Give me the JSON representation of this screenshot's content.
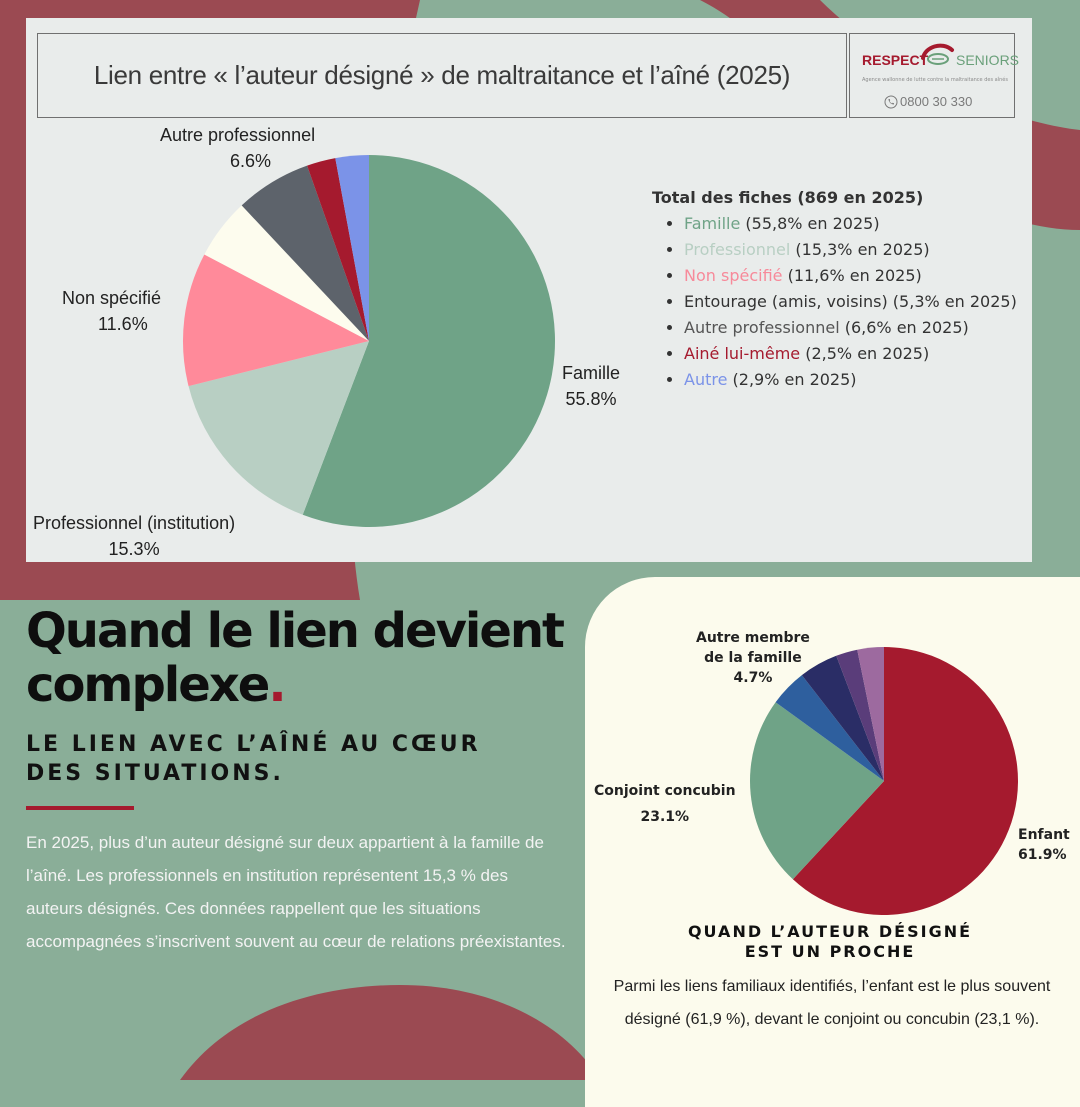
{
  "header": {
    "title": "Lien entre « l’auteur désigné » de maltraitance et l’aîné (2025)"
  },
  "logo": {
    "brand_left": "RESPECT",
    "brand_right": "SENIORS",
    "tagline": "Agence wallonne de lutte contre la maltraitance des aînés",
    "phone": "0800 30 330"
  },
  "legend": {
    "title": "Total des fiches (869 en 2025)",
    "items": [
      {
        "name": "Famille",
        "rest": " (55,8% en 2025)",
        "color": "#6fa387"
      },
      {
        "name": "Professionnel",
        "rest": " (15,3% en 2025)",
        "color": "#b8cfc3"
      },
      {
        "name": "Non spécifié",
        "rest": " (11,6% en 2025)",
        "color": "#f78a9a"
      },
      {
        "name": "Entourage (amis, voisins)",
        "rest": " (5,3% en 2025)",
        "color": "#333333"
      },
      {
        "name": "Autre professionnel",
        "rest": " (6,6% en 2025)",
        "color": "#555555"
      },
      {
        "name": "Ainé lui-même",
        "rest": " (2,5% en 2025)",
        "color": "#a51a2e"
      },
      {
        "name": "Autre",
        "rest": " (2,9% en 2025)",
        "color": "#7b93e8"
      }
    ]
  },
  "chart_data": [
    {
      "type": "pie",
      "title": "Lien entre « l’auteur désigné » de maltraitance et l’aîné (2025)",
      "categories": [
        "Famille",
        "Professionnel (institution)",
        "Non spécifié",
        "Entourage (amis, voisins)",
        "Autre professionnel",
        "Ainé lui-même",
        "Autre"
      ],
      "values": [
        55.8,
        15.3,
        11.6,
        5.3,
        6.6,
        2.5,
        2.9
      ],
      "colors": [
        "#6fa387",
        "#b8cfc3",
        "#ff8a9a",
        "#fdfcee",
        "#5d636b",
        "#a51a2e",
        "#7b93e8"
      ],
      "labels": [
        {
          "index": 0,
          "name": "Famille",
          "value": "55.8%"
        },
        {
          "index": 1,
          "name": "Professionnel (institution)",
          "value": "15.3%"
        },
        {
          "index": 2,
          "name": "Non spécifié",
          "value": "11.6%"
        },
        {
          "index": 4,
          "name": "Autre professionnel",
          "value": "6.6%"
        }
      ]
    },
    {
      "type": "pie",
      "title": "QUAND L’AUTEUR DÉSIGNÉ EST UN PROCHE",
      "categories": [
        "Enfant",
        "Conjoint concubin",
        "",
        "Autre membre de la famille",
        "",
        ""
      ],
      "values": [
        61.9,
        23.1,
        4.5,
        4.7,
        2.6,
        3.2
      ],
      "colors": [
        "#a51a2e",
        "#6fa387",
        "#2e5f9e",
        "#2a2d66",
        "#5a3d7a",
        "#9d6a9f"
      ],
      "labels": [
        {
          "index": 0,
          "name": "Enfant",
          "value": "61.9%"
        },
        {
          "index": 1,
          "name": "Conjoint concubin",
          "value": "23.1%"
        },
        {
          "index": 3,
          "name": "Autre membre de la famille",
          "value": "4.7%"
        }
      ]
    }
  ],
  "section": {
    "headline_line1": "Quand le lien devient",
    "headline_line2": "complexe",
    "headline_dot": ".",
    "subhead_line1": "LE LIEN AVEC L’AÎNÉ AU CŒUR",
    "subhead_line2": "DES SITUATIONS.",
    "paragraph": "En 2025, plus d’un auteur désigné sur deux appartient à la famille de l’aîné. Les professionnels en institution représentent 15,3 % des auteurs désignés. Ces données rappellent que les situations accompagnées s’inscrivent souvent au cœur de relations préexistantes."
  },
  "proche": {
    "subtitle_line1": "QUAND L’AUTEUR DÉSIGNÉ",
    "subtitle_line2": "EST UN PROCHE",
    "paragraph": "Parmi les liens familiaux identifiés, l’enfant est le plus souvent désigné (61,9 %), devant le conjoint ou concubin (23,1 %).",
    "label_enfant": "Enfant",
    "label_enfant_value": "61.9%",
    "label_conjoint": "Conjoint concubin",
    "label_conjoint_value": "23.1%",
    "label_autre_line1": "Autre membre",
    "label_autre_line2": "de la famille",
    "label_autre_value": "4.7%"
  },
  "pie_labels": {
    "famille": "Famille",
    "famille_value": "55.8%",
    "professionnel": "Professionnel (institution)",
    "professionnel_value": "15.3%",
    "non_specifie": "Non spécifié",
    "non_specifie_value": "11.6%",
    "autre_pro": "Autre professionnel",
    "autre_pro_value": "6.6%"
  }
}
